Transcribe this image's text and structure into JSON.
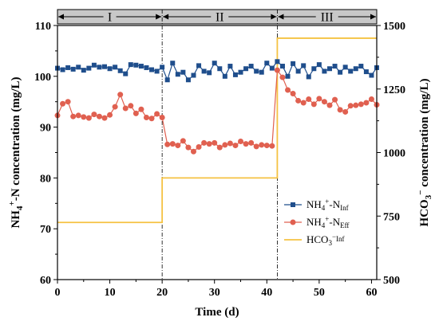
{
  "chart_data": {
    "type": "line",
    "x_range": [
      0,
      61
    ],
    "y_left_range": [
      60,
      110
    ],
    "y_right_range": [
      500,
      1500
    ],
    "x_ticks": [
      0,
      10,
      20,
      30,
      40,
      50,
      60
    ],
    "y_left_ticks": [
      60,
      70,
      80,
      90,
      100,
      110
    ],
    "y_right_ticks": [
      500,
      750,
      1000,
      1250,
      1500
    ],
    "xlabel": "Time (d)",
    "ylabel_left": {
      "main": "NH",
      "sub": "4",
      "sup": "+",
      "rest": "-N concentration (mg/L)"
    },
    "ylabel_right": {
      "main": "HCO",
      "sub": "3",
      "sup": "−",
      "rest": " concentration (mg/L)"
    },
    "phases": [
      {
        "label": "I",
        "start": 0,
        "end": 20
      },
      {
        "label": "II",
        "start": 20,
        "end": 42
      },
      {
        "label": "III",
        "start": 42,
        "end": 61
      }
    ],
    "phase_boundaries": [
      20,
      42
    ],
    "legend_position": "center-right",
    "series": [
      {
        "name": {
          "main": "NH",
          "sub1": "4",
          "sup": "+",
          "mid": "-N",
          "sub2": "Inf"
        },
        "axis": "left",
        "marker": "square",
        "color": "#1f4e8c",
        "x": [
          0,
          1,
          2,
          3,
          4,
          5,
          6,
          7,
          8,
          9,
          10,
          11,
          12,
          13,
          14,
          15,
          16,
          17,
          18,
          19,
          20,
          21,
          22,
          23,
          24,
          25,
          26,
          27,
          28,
          29,
          30,
          31,
          32,
          33,
          34,
          35,
          36,
          37,
          38,
          39,
          40,
          41,
          42,
          43,
          44,
          45,
          46,
          47,
          48,
          49,
          50,
          51,
          52,
          53,
          54,
          55,
          56,
          57,
          58,
          59,
          60,
          61
        ],
        "y": [
          101.6,
          101.3,
          101.7,
          101.4,
          101.8,
          101.2,
          101.6,
          102.2,
          101.8,
          101.9,
          101.5,
          101.8,
          101.1,
          100.5,
          102.3,
          102.2,
          102.0,
          101.7,
          101.3,
          101.0,
          101.8,
          99.3,
          102.6,
          100.4,
          100.8,
          99.3,
          100.2,
          102.1,
          101.0,
          100.7,
          102.6,
          101.5,
          100.0,
          102.0,
          100.3,
          100.8,
          101.5,
          102.0,
          101.0,
          100.8,
          102.6,
          101.6,
          102.9,
          102.0,
          100.0,
          102.5,
          101.0,
          102.1,
          99.9,
          101.5,
          102.3,
          101.0,
          101.5,
          102.0,
          100.8,
          101.8,
          101.0,
          101.5,
          102.0,
          100.9,
          100.2,
          101.7
        ]
      },
      {
        "name": {
          "main": "NH",
          "sub1": "4",
          "sup": "+",
          "mid": "-N",
          "sub2": "Eff"
        },
        "axis": "left",
        "marker": "circle",
        "color": "#e06050",
        "x": [
          0,
          1,
          2,
          3,
          4,
          5,
          6,
          7,
          8,
          9,
          10,
          11,
          12,
          13,
          14,
          15,
          16,
          17,
          18,
          19,
          20,
          21,
          22,
          23,
          24,
          25,
          26,
          27,
          28,
          29,
          30,
          31,
          32,
          33,
          34,
          35,
          36,
          37,
          38,
          39,
          40,
          41,
          42,
          43,
          44,
          45,
          46,
          47,
          48,
          49,
          50,
          51,
          52,
          53,
          54,
          55,
          56,
          57,
          58,
          59,
          60,
          61
        ],
        "y": [
          92.3,
          94.6,
          95.0,
          92.1,
          92.3,
          92.0,
          91.8,
          92.5,
          92.1,
          91.8,
          92.4,
          94.0,
          96.4,
          93.7,
          94.2,
          92.7,
          93.5,
          91.9,
          91.7,
          92.6,
          91.9,
          86.6,
          86.7,
          86.4,
          87.3,
          86.0,
          85.2,
          86.1,
          86.9,
          86.7,
          86.9,
          86.0,
          86.5,
          86.8,
          86.4,
          87.2,
          86.7,
          86.9,
          86.2,
          86.5,
          86.4,
          86.3,
          101.2,
          99.8,
          97.3,
          96.6,
          95.2,
          94.8,
          95.5,
          94.5,
          95.6,
          95.0,
          94.3,
          95.4,
          93.4,
          93.0,
          94.2,
          94.3,
          94.5,
          94.8,
          95.5,
          94.4
        ]
      },
      {
        "name": {
          "main": "HCO",
          "sub1": "3",
          "sup": "−",
          "mid": "",
          "sub2": "Inf"
        },
        "axis": "right",
        "marker": "none",
        "color": "#f5c242",
        "steps": [
          {
            "x0": 0,
            "x1": 20,
            "y": 725
          },
          {
            "x0": 20,
            "x1": 42,
            "y": 900
          },
          {
            "x0": 42,
            "x1": 61,
            "y": 1450
          }
        ]
      }
    ]
  }
}
